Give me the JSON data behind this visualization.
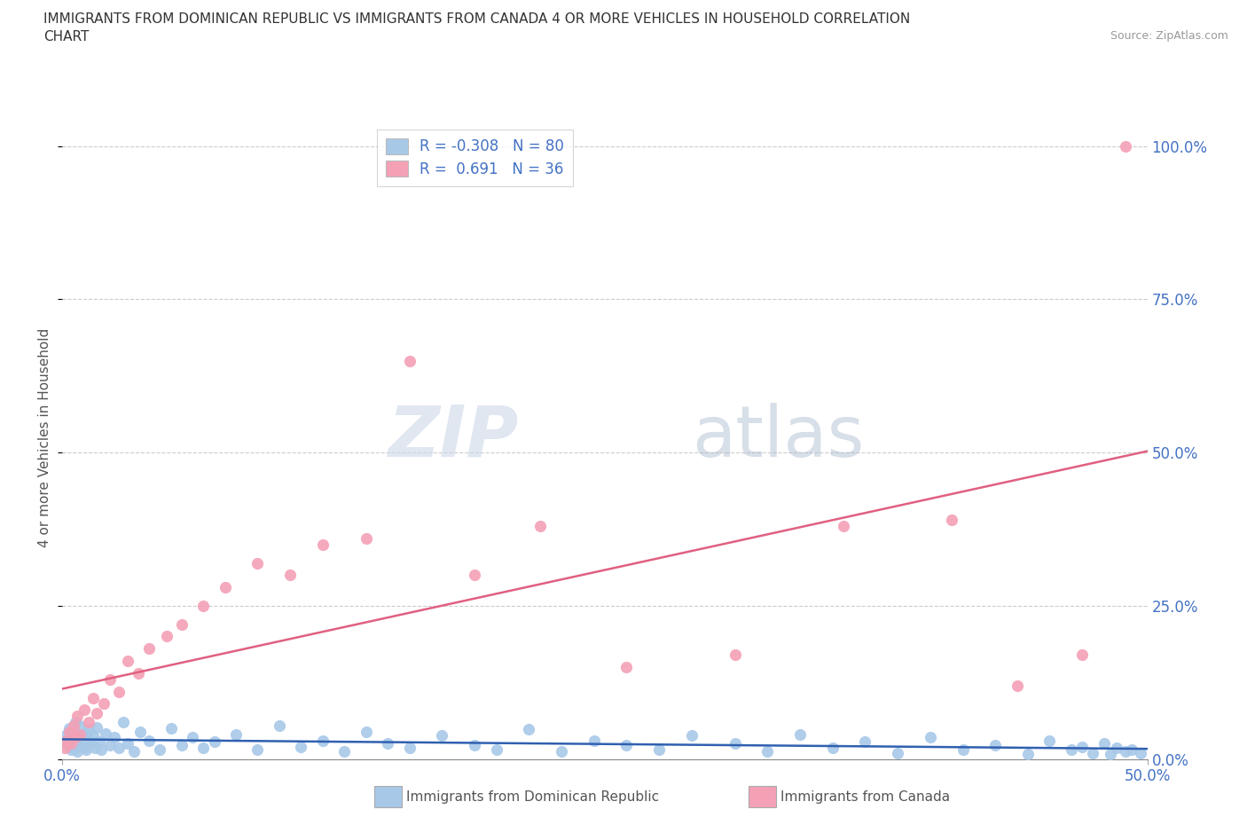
{
  "title_line1": "IMMIGRANTS FROM DOMINICAN REPUBLIC VS IMMIGRANTS FROM CANADA 4 OR MORE VEHICLES IN HOUSEHOLD CORRELATION",
  "title_line2": "CHART",
  "source": "Source: ZipAtlas.com",
  "ylabel": "4 or more Vehicles in Household",
  "xlim": [
    0.0,
    0.5
  ],
  "ylim": [
    0.0,
    1.05
  ],
  "xtick_positions": [
    0.0,
    0.5
  ],
  "xtick_labels": [
    "0.0%",
    "50.0%"
  ],
  "ytick_labels": [
    "0.0%",
    "25.0%",
    "50.0%",
    "75.0%",
    "100.0%"
  ],
  "ytick_positions": [
    0.0,
    0.25,
    0.5,
    0.75,
    1.0
  ],
  "r_blue": -0.308,
  "n_blue": 80,
  "r_pink": 0.691,
  "n_pink": 36,
  "color_blue": "#a8c8e8",
  "color_pink": "#f4a0b5",
  "line_blue": "#3060b0",
  "line_pink": "#e06080",
  "background": "#ffffff",
  "blue_x": [
    0.001,
    0.002,
    0.002,
    0.003,
    0.003,
    0.004,
    0.004,
    0.005,
    0.005,
    0.006,
    0.006,
    0.007,
    0.007,
    0.008,
    0.008,
    0.009,
    0.01,
    0.01,
    0.011,
    0.012,
    0.012,
    0.013,
    0.014,
    0.015,
    0.016,
    0.017,
    0.018,
    0.02,
    0.022,
    0.024,
    0.026,
    0.028,
    0.03,
    0.033,
    0.036,
    0.04,
    0.045,
    0.05,
    0.055,
    0.06,
    0.065,
    0.07,
    0.08,
    0.09,
    0.1,
    0.11,
    0.12,
    0.13,
    0.14,
    0.15,
    0.16,
    0.175,
    0.19,
    0.2,
    0.215,
    0.23,
    0.245,
    0.26,
    0.275,
    0.29,
    0.31,
    0.325,
    0.34,
    0.355,
    0.37,
    0.385,
    0.4,
    0.415,
    0.43,
    0.445,
    0.455,
    0.465,
    0.47,
    0.475,
    0.48,
    0.483,
    0.486,
    0.49,
    0.493,
    0.497
  ],
  "blue_y": [
    0.03,
    0.025,
    0.04,
    0.02,
    0.05,
    0.015,
    0.035,
    0.025,
    0.045,
    0.018,
    0.06,
    0.012,
    0.038,
    0.022,
    0.055,
    0.028,
    0.02,
    0.042,
    0.015,
    0.032,
    0.048,
    0.025,
    0.038,
    0.018,
    0.052,
    0.028,
    0.015,
    0.042,
    0.022,
    0.035,
    0.018,
    0.06,
    0.025,
    0.012,
    0.045,
    0.03,
    0.015,
    0.05,
    0.022,
    0.035,
    0.018,
    0.028,
    0.04,
    0.015,
    0.055,
    0.02,
    0.03,
    0.012,
    0.045,
    0.025,
    0.018,
    0.038,
    0.022,
    0.015,
    0.048,
    0.012,
    0.03,
    0.022,
    0.015,
    0.038,
    0.025,
    0.012,
    0.04,
    0.018,
    0.028,
    0.01,
    0.035,
    0.015,
    0.022,
    0.008,
    0.03,
    0.015,
    0.02,
    0.01,
    0.025,
    0.008,
    0.018,
    0.012,
    0.015,
    0.01
  ],
  "pink_x": [
    0.001,
    0.002,
    0.003,
    0.004,
    0.005,
    0.006,
    0.007,
    0.008,
    0.01,
    0.012,
    0.014,
    0.016,
    0.019,
    0.022,
    0.026,
    0.03,
    0.035,
    0.04,
    0.048,
    0.055,
    0.065,
    0.075,
    0.09,
    0.105,
    0.12,
    0.14,
    0.16,
    0.19,
    0.22,
    0.26,
    0.31,
    0.36,
    0.41,
    0.44,
    0.47,
    0.49
  ],
  "pink_y": [
    0.018,
    0.03,
    0.045,
    0.025,
    0.055,
    0.035,
    0.07,
    0.04,
    0.08,
    0.06,
    0.1,
    0.075,
    0.09,
    0.13,
    0.11,
    0.16,
    0.14,
    0.18,
    0.2,
    0.22,
    0.25,
    0.28,
    0.32,
    0.3,
    0.35,
    0.36,
    0.65,
    0.3,
    0.38,
    0.15,
    0.17,
    0.38,
    0.39,
    0.12,
    0.17,
    1.0
  ]
}
